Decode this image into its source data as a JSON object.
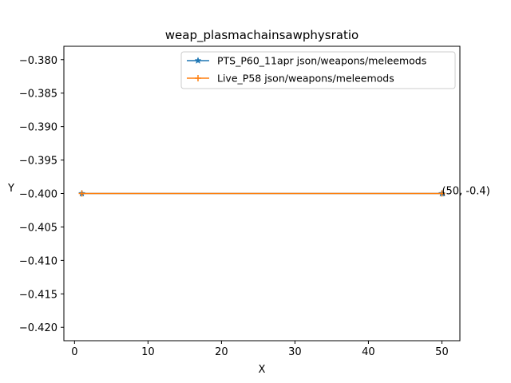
{
  "chart_data": {
    "type": "line",
    "title": "weap_plasmachainsawphysratio",
    "xlabel": "X",
    "ylabel": "Y",
    "xlim": [
      -1.45,
      52.45
    ],
    "ylim": [
      -0.422,
      -0.378
    ],
    "xticks": [
      0,
      10,
      20,
      30,
      40,
      50
    ],
    "yticks": [
      -0.38,
      -0.385,
      -0.39,
      -0.395,
      -0.4,
      -0.405,
      -0.41,
      -0.415,
      -0.42
    ],
    "xtick_labels": [
      "0",
      "10",
      "20",
      "30",
      "40",
      "50"
    ],
    "ytick_labels": [
      "−0.380",
      "−0.385",
      "−0.390",
      "−0.395",
      "−0.400",
      "−0.405",
      "−0.410",
      "−0.415",
      "−0.420"
    ],
    "grid": false,
    "legend_position": "top-right",
    "series": [
      {
        "name": "PTS_P60_11apr json/weapons/meleemods",
        "color": "#1f77b4",
        "marker": "star",
        "x": [
          1,
          50
        ],
        "y": [
          -0.4,
          -0.4
        ]
      },
      {
        "name": "Live_P58 json/weapons/meleemods",
        "color": "#ff7f0e",
        "marker": "plus",
        "x": [
          1,
          50
        ],
        "y": [
          -0.4,
          -0.4
        ]
      }
    ],
    "annotations": [
      {
        "text": "(50, -0.4)",
        "x": 50,
        "y": -0.4
      }
    ]
  }
}
